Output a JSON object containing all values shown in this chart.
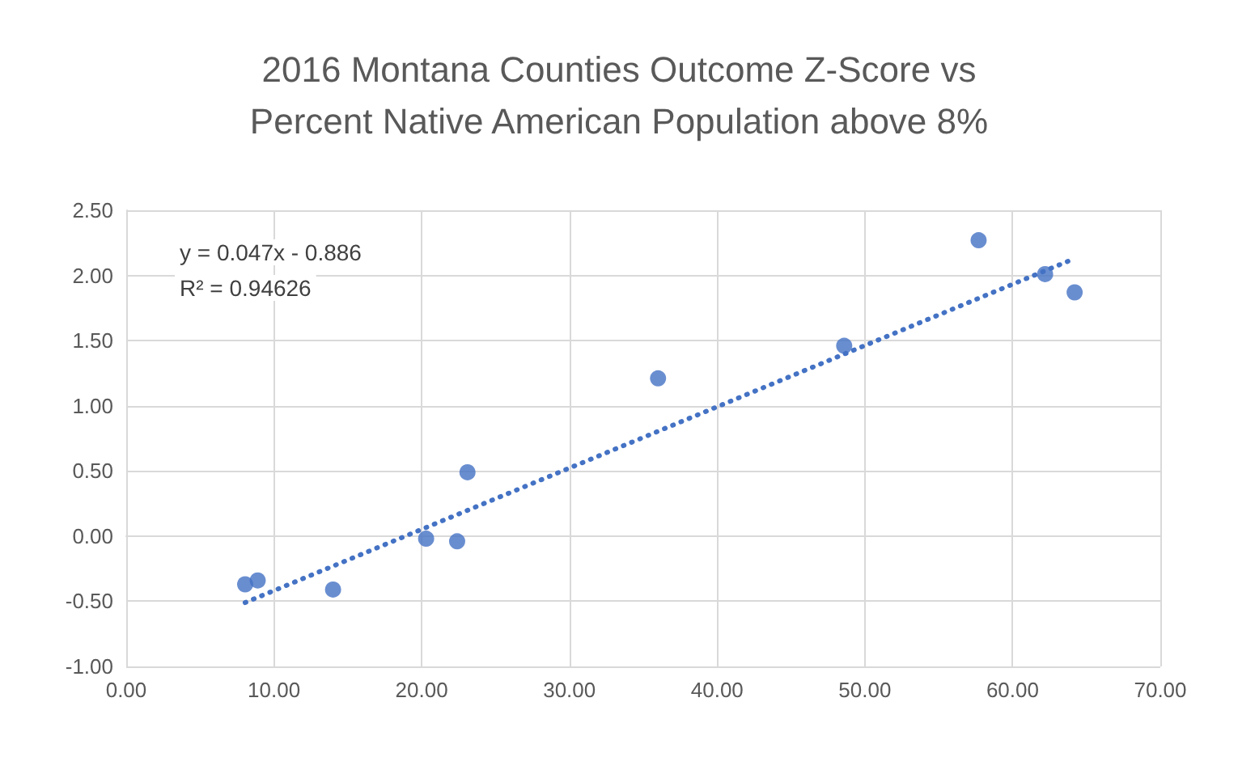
{
  "chart_data": {
    "type": "scatter",
    "title": "2016 Montana Counties Outcome Z-Score vs\nPercent Native American Population above 8%",
    "marker": "circle",
    "grid": true,
    "xlim": [
      0,
      70
    ],
    "xticks": [
      {
        "value": 0,
        "label": "0.00"
      },
      {
        "value": 10,
        "label": "10.00"
      },
      {
        "value": 20,
        "label": "20.00"
      },
      {
        "value": 30,
        "label": "30.00"
      },
      {
        "value": 40,
        "label": "40.00"
      },
      {
        "value": 50,
        "label": "50.00"
      },
      {
        "value": 60,
        "label": "60.00"
      },
      {
        "value": 70,
        "label": "70.00"
      }
    ],
    "ylim": [
      -1,
      2.5
    ],
    "yticks": [
      {
        "value": -1,
        "label": "-1.00"
      },
      {
        "value": -0.5,
        "label": "-0.50"
      },
      {
        "value": 0,
        "label": "0.00"
      },
      {
        "value": 0.5,
        "label": "0.50"
      },
      {
        "value": 1,
        "label": "1.00"
      },
      {
        "value": 1.5,
        "label": "1.50"
      },
      {
        "value": 2,
        "label": "2.00"
      },
      {
        "value": 2.5,
        "label": "2.50"
      }
    ],
    "annotations": [
      "y = 0.047x - 0.886",
      "R² = 0.94626"
    ],
    "series": [
      {
        "color": "#4472c4",
        "x": [
          8.05,
          8.9,
          14.0,
          20.3,
          22.4,
          23.1,
          36.0,
          48.6,
          57.7,
          62.2,
          64.2
        ],
        "values": [
          -0.37,
          -0.34,
          -0.41,
          -0.02,
          -0.04,
          0.49,
          1.21,
          1.46,
          2.27,
          2.01,
          1.87
        ]
      },
      {
        "type": "line",
        "color": "#4472c4",
        "line_style": "dotted",
        "marker": "none",
        "x": [
          8.05,
          64.2
        ],
        "values": [
          -0.51,
          2.13
        ]
      }
    ]
  }
}
